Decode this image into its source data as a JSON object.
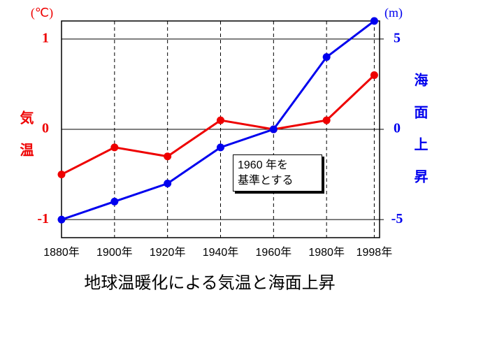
{
  "chart_data": {
    "type": "line",
    "title": "地球温暖化による気温と海面上昇",
    "ylabel": "気温",
    "y2label": "海面上昇",
    "yunit": "(℃)",
    "y2unit": "(m)",
    "annotation": [
      "1960 年を",
      "基準とする"
    ],
    "x": [
      1880,
      1900,
      1920,
      1940,
      1960,
      1980,
      1998
    ],
    "xlim": [
      1880,
      2000
    ],
    "xticks": [
      {
        "value": 1880,
        "label": "1880年"
      },
      {
        "value": 1900,
        "label": "1900年"
      },
      {
        "value": 1920,
        "label": "1920年"
      },
      {
        "value": 1940,
        "label": "1940年"
      },
      {
        "value": 1960,
        "label": "1960年"
      },
      {
        "value": 1980,
        "label": "1980年"
      },
      {
        "value": 1998,
        "label": "1998年"
      }
    ],
    "ylim": [
      -1.2,
      1.2
    ],
    "yticks": [
      -1,
      0,
      1
    ],
    "y2lim": [
      -6,
      6
    ],
    "y2ticks": [
      -5,
      0,
      5
    ],
    "series": [
      {
        "color": "#ee0000",
        "values": [
          -0.5,
          -0.2,
          -0.3,
          0.1,
          0,
          0.1,
          0.6
        ]
      },
      {
        "color": "#0000ee",
        "axis": "y2",
        "values": [
          -5,
          -4,
          -3,
          -1,
          0,
          4,
          6
        ]
      }
    ]
  }
}
